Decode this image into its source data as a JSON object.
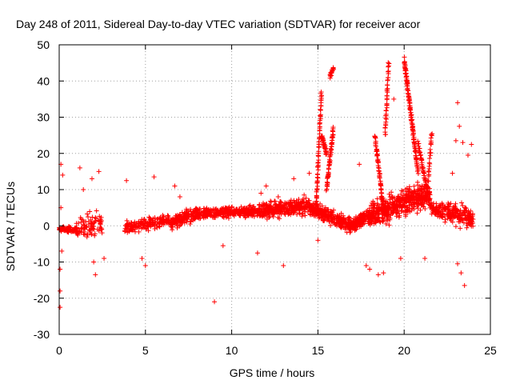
{
  "chart_data": {
    "type": "scatter",
    "title": "Day 248 of 2011, Sidereal Day-to-day VTEC variation (SDTVAR) for receiver acor",
    "xlabel": "GPS time / hours",
    "ylabel": "SDTVAR / TECUs",
    "xlim": [
      0,
      25
    ],
    "ylim": [
      -30,
      50
    ],
    "xticks": [
      0,
      5,
      10,
      15,
      20,
      25
    ],
    "yticks": [
      -30,
      -20,
      -10,
      0,
      10,
      20,
      30,
      40,
      50
    ],
    "grid": true,
    "marker": "+",
    "color": "#ff0000",
    "series": [
      {
        "name": "SDTVAR",
        "bands": [
          {
            "x0": 0.0,
            "x1": 1.0,
            "y0": -1.0,
            "y1": -1.0,
            "spread": 1.2,
            "n": 80
          },
          {
            "x0": 1.0,
            "x1": 2.5,
            "y0": -0.5,
            "y1": 0.5,
            "spread": 5,
            "n": 90
          },
          {
            "x0": 3.8,
            "x1": 6.5,
            "y0": -0.5,
            "y1": 1.5,
            "spread": 2.5,
            "n": 180
          },
          {
            "x0": 6.5,
            "x1": 8.0,
            "y0": 1.0,
            "y1": 3.5,
            "spread": 2.5,
            "n": 160
          },
          {
            "x0": 8.0,
            "x1": 11.5,
            "y0": 3.5,
            "y1": 4.0,
            "spread": 2,
            "n": 320
          },
          {
            "x0": 11.5,
            "x1": 14.5,
            "y0": 4.0,
            "y1": 5.5,
            "spread": 3,
            "n": 320
          },
          {
            "x0": 14.5,
            "x1": 17.0,
            "y0": 5.0,
            "y1": 0.0,
            "spread": 3,
            "n": 300
          },
          {
            "x0": 17.0,
            "x1": 18.0,
            "y0": 0.0,
            "y1": 3.0,
            "spread": 2.5,
            "n": 160
          },
          {
            "x0": 18.0,
            "x1": 21.5,
            "y0": 3.0,
            "y1": 9.0,
            "spread": 5,
            "n": 500
          },
          {
            "x0": 21.5,
            "x1": 24.0,
            "y0": 5.0,
            "y1": 2.0,
            "spread": 4,
            "n": 240
          }
        ],
        "spikes": [
          {
            "x0": 14.9,
            "x1": 15.2,
            "y0": 5,
            "y1": 37,
            "n": 70
          },
          {
            "x0": 15.2,
            "x1": 15.5,
            "y0": 25,
            "y1": 20,
            "n": 40
          },
          {
            "x0": 15.5,
            "x1": 15.9,
            "y0": 10,
            "y1": 27,
            "n": 60
          },
          {
            "x0": 15.7,
            "x1": 15.9,
            "y0": 41,
            "y1": 44,
            "n": 15
          },
          {
            "x0": 18.3,
            "x1": 18.8,
            "y0": 25,
            "y1": 5,
            "n": 60
          },
          {
            "x0": 18.9,
            "x1": 19.1,
            "y0": 25,
            "y1": 45,
            "n": 40
          },
          {
            "x0": 20.0,
            "x1": 20.8,
            "y0": 46,
            "y1": 15,
            "n": 130
          },
          {
            "x0": 20.8,
            "x1": 21.4,
            "y0": 23,
            "y1": 8,
            "n": 50
          },
          {
            "x0": 21.4,
            "x1": 21.6,
            "y0": 12,
            "y1": 26,
            "n": 25
          }
        ],
        "outliers": [
          [
            0.05,
            -22.5
          ],
          [
            0.05,
            -18
          ],
          [
            0.1,
            17
          ],
          [
            0.2,
            14
          ],
          [
            0.1,
            5
          ],
          [
            0.05,
            -12
          ],
          [
            0.15,
            -7
          ],
          [
            1.2,
            16
          ],
          [
            1.4,
            10
          ],
          [
            1.9,
            13
          ],
          [
            2.3,
            15
          ],
          [
            2.1,
            -13.5
          ],
          [
            2.0,
            -10
          ],
          [
            2.6,
            -9
          ],
          [
            3.9,
            12.5
          ],
          [
            4.8,
            -9
          ],
          [
            5.0,
            -11
          ],
          [
            5.5,
            13.5
          ],
          [
            6.7,
            11
          ],
          [
            7.0,
            8
          ],
          [
            9.0,
            -21
          ],
          [
            9.5,
            -5.5
          ],
          [
            11.5,
            -7.5
          ],
          [
            11.7,
            9
          ],
          [
            12.0,
            11
          ],
          [
            12.7,
            8
          ],
          [
            13.0,
            -11
          ],
          [
            13.6,
            13
          ],
          [
            14.2,
            8.5
          ],
          [
            14.5,
            14.5
          ],
          [
            15.0,
            -4
          ],
          [
            17.4,
            17
          ],
          [
            17.8,
            -11
          ],
          [
            18.0,
            -12
          ],
          [
            18.2,
            2
          ],
          [
            18.5,
            -13.5
          ],
          [
            18.8,
            -13
          ],
          [
            19.4,
            35
          ],
          [
            19.8,
            -9
          ],
          [
            20.2,
            5
          ],
          [
            21.2,
            -9
          ],
          [
            22.8,
            14.5
          ],
          [
            23.0,
            23.5
          ],
          [
            23.1,
            34
          ],
          [
            23.2,
            27.5
          ],
          [
            23.4,
            23
          ],
          [
            23.5,
            -16.5
          ],
          [
            23.3,
            -13
          ],
          [
            23.7,
            19.5
          ],
          [
            23.9,
            22.5
          ],
          [
            23.1,
            -10.5
          ]
        ]
      }
    ]
  }
}
